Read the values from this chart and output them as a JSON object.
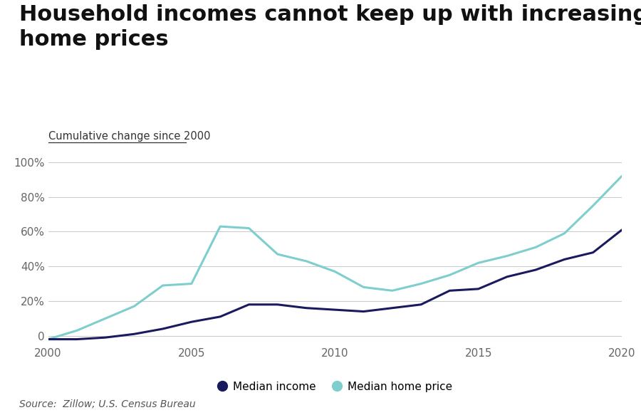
{
  "title_line1": "Household incomes cannot keep up with increasing",
  "title_line2": "home prices",
  "subtitle": "Cumulative change since 2000",
  "source": "Source:  Zillow; U.S. Census Bureau",
  "ylim": [
    -5,
    105
  ],
  "yticks": [
    0,
    20,
    40,
    60,
    80,
    100
  ],
  "ytick_labels": [
    "0",
    "20%",
    "40%",
    "60%",
    "80%",
    "100%"
  ],
  "xticks": [
    2000,
    2005,
    2010,
    2015,
    2020
  ],
  "background_color": "#ffffff",
  "median_income": {
    "years": [
      2000,
      2001,
      2002,
      2003,
      2004,
      2005,
      2006,
      2007,
      2008,
      2009,
      2010,
      2011,
      2012,
      2013,
      2014,
      2015,
      2016,
      2017,
      2018,
      2019,
      2020
    ],
    "values": [
      -2,
      -2,
      -1,
      1,
      4,
      8,
      11,
      18,
      18,
      16,
      15,
      14,
      16,
      18,
      26,
      27,
      34,
      38,
      44,
      48,
      61
    ],
    "color": "#1a1a5e",
    "linewidth": 2.2,
    "label": "Median income"
  },
  "median_home_price": {
    "years": [
      2000,
      2001,
      2002,
      2003,
      2004,
      2005,
      2006,
      2007,
      2008,
      2009,
      2010,
      2011,
      2012,
      2013,
      2014,
      2015,
      2016,
      2017,
      2018,
      2019,
      2020
    ],
    "values": [
      -2,
      3,
      10,
      17,
      29,
      30,
      63,
      62,
      47,
      43,
      37,
      28,
      26,
      30,
      35,
      42,
      46,
      51,
      59,
      75,
      92
    ],
    "color": "#7ecece",
    "linewidth": 2.2,
    "label": "Median home price"
  },
  "title_fontsize": 22,
  "subtitle_fontsize": 10.5,
  "tick_fontsize": 11,
  "source_fontsize": 10,
  "legend_fontsize": 11
}
